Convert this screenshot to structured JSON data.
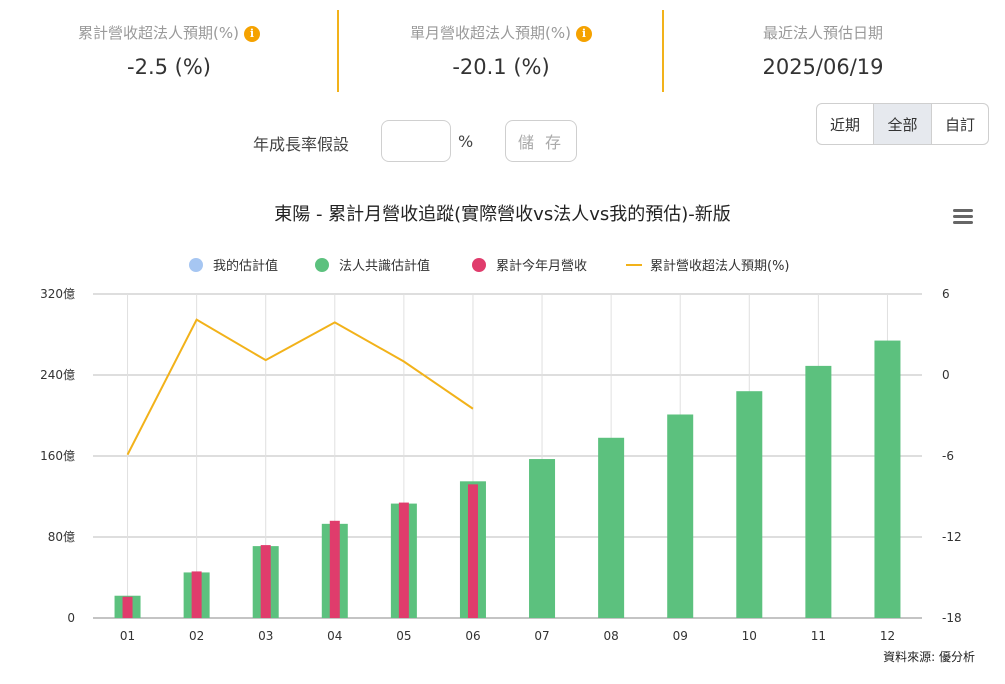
{
  "stats": [
    {
      "label": "累計營收超法人預期(%)",
      "value": "-2.5 (%)",
      "info_icon": "info-icon"
    },
    {
      "label": "單月營收超法人預期(%)",
      "value": "-20.1 (%)",
      "info_icon": "info-icon"
    },
    {
      "label": "最近法人預估日期",
      "value": "2025/06/19"
    }
  ],
  "growth": {
    "label": "年成長率假設",
    "value": "",
    "placeholder": "",
    "unit": "%",
    "save_label": "儲 存"
  },
  "range_buttons": [
    "近期",
    "全部",
    "自訂"
  ],
  "range_selected": "全部",
  "colors": {
    "accent": "#f2b21a",
    "my_estimate": "#a6c6f2",
    "consensus": "#5cc17e",
    "actual": "#e03c6c",
    "line": "#f2b21a"
  },
  "source": "資料來源: 優分析",
  "chart_data": {
    "type": "bar",
    "title": "東陽 - 累計月營收追蹤(實際營收vs法人vs我的預估)-新版",
    "categories": [
      "01",
      "02",
      "03",
      "04",
      "05",
      "06",
      "07",
      "08",
      "09",
      "10",
      "11",
      "12"
    ],
    "legend_position": "top",
    "grid": true,
    "y_left": {
      "min": 0,
      "max": 320,
      "ticks": [
        0,
        80,
        160,
        240,
        320
      ],
      "tick_labels": [
        "0",
        "80億",
        "160億",
        "240億",
        "320億"
      ]
    },
    "y_right": {
      "min": -18,
      "max": 6,
      "ticks": [
        -18,
        -12,
        -6,
        0,
        6
      ],
      "tick_labels": [
        "-18",
        "-12",
        "-6",
        "0",
        "6"
      ]
    },
    "series": [
      {
        "name": "我的估計值",
        "kind": "bar",
        "axis": "left",
        "values": [
          null,
          null,
          null,
          null,
          null,
          null,
          null,
          null,
          null,
          null,
          null,
          null
        ]
      },
      {
        "name": "法人共識估計值",
        "kind": "bar",
        "axis": "left",
        "values": [
          22,
          45,
          71,
          93,
          113,
          135,
          157,
          178,
          201,
          224,
          249,
          274
        ]
      },
      {
        "name": "累計今年月營收",
        "kind": "bar",
        "axis": "left",
        "values": [
          21,
          46,
          72,
          96,
          114,
          132,
          null,
          null,
          null,
          null,
          null,
          null
        ]
      },
      {
        "name": "累計營收超法人預期(%)",
        "kind": "line",
        "axis": "right",
        "values": [
          -5.9,
          4.1,
          1.1,
          3.9,
          1.0,
          -2.5,
          null,
          null,
          null,
          null,
          null,
          null
        ]
      }
    ]
  }
}
